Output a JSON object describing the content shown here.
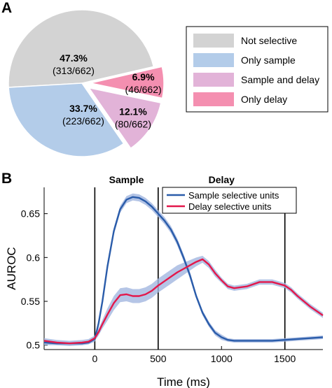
{
  "panels": {
    "a_letter": "A",
    "b_letter": "B"
  },
  "chart_data": [
    {
      "type": "pie",
      "legend_position": "right",
      "slices": [
        {
          "name": "Not selective",
          "percent": 47.3,
          "pct_label": "47.3%",
          "count_label": "(313/662)",
          "color": "#d3d3d3",
          "exploded": false
        },
        {
          "name": "Only sample",
          "percent": 33.7,
          "pct_label": "33.7%",
          "count_label": "(223/662)",
          "color": "#b3cce9",
          "exploded": false
        },
        {
          "name": "Sample and delay",
          "percent": 12.1,
          "pct_label": "12.1%",
          "count_label": "(80/662)",
          "color": "#e2b3d8",
          "exploded": true
        },
        {
          "name": "Only delay",
          "percent": 6.9,
          "pct_label": "6.9%",
          "count_label": "(46/662)",
          "color": "#f48fb0",
          "exploded": true
        }
      ]
    },
    {
      "type": "line",
      "xlabel": "Time (ms)",
      "ylabel": "AUROC",
      "xlim": [
        -400,
        1800
      ],
      "ylim": [
        0.495,
        0.68
      ],
      "xticks": [
        0,
        500,
        1000,
        1500
      ],
      "xtick_labels": [
        "0",
        "500",
        "1000",
        "1500"
      ],
      "yticks": [
        0.5,
        0.55,
        0.6,
        0.65
      ],
      "ytick_labels": [
        "0.5",
        "0.55",
        "0.6",
        "0.65"
      ],
      "grid": false,
      "legend_position": "top-right",
      "vlines": [
        0,
        500,
        1500
      ],
      "epoch_labels": [
        {
          "text": "Sample",
          "x": 250
        },
        {
          "text": "Delay",
          "x": 1000
        }
      ],
      "series": [
        {
          "name": "Sample selective units",
          "color": "#2a5caa",
          "band_color": "#9fb4de",
          "x": [
            -400,
            -300,
            -200,
            -100,
            -50,
            0,
            30,
            60,
            100,
            150,
            200,
            250,
            300,
            350,
            400,
            450,
            500,
            550,
            600,
            650,
            700,
            750,
            800,
            850,
            900,
            950,
            1000,
            1050,
            1100,
            1200,
            1300,
            1400,
            1500,
            1600,
            1700,
            1800
          ],
          "y": [
            0.503,
            0.502,
            0.502,
            0.502,
            0.503,
            0.507,
            0.525,
            0.55,
            0.59,
            0.63,
            0.655,
            0.666,
            0.669,
            0.668,
            0.664,
            0.658,
            0.65,
            0.642,
            0.632,
            0.618,
            0.6,
            0.58,
            0.556,
            0.537,
            0.524,
            0.514,
            0.509,
            0.506,
            0.505,
            0.505,
            0.505,
            0.505,
            0.506,
            0.507,
            0.508,
            0.509
          ],
          "band": [
            0.003,
            0.002,
            0.002,
            0.002,
            0.002,
            0.003,
            0.003,
            0.004,
            0.004,
            0.004,
            0.004,
            0.004,
            0.004,
            0.004,
            0.004,
            0.004,
            0.004,
            0.004,
            0.004,
            0.004,
            0.004,
            0.004,
            0.003,
            0.003,
            0.003,
            0.003,
            0.003,
            0.002,
            0.002,
            0.002,
            0.002,
            0.002,
            0.002,
            0.002,
            0.002,
            0.002
          ]
        },
        {
          "name": "Delay selective units",
          "color": "#e3184b",
          "band_color": "#a3b6e0",
          "x": [
            -400,
            -300,
            -200,
            -100,
            -50,
            0,
            30,
            60,
            100,
            150,
            200,
            250,
            300,
            350,
            400,
            450,
            500,
            550,
            600,
            650,
            700,
            750,
            800,
            850,
            900,
            950,
            1000,
            1050,
            1100,
            1200,
            1300,
            1400,
            1500,
            1550,
            1600,
            1700,
            1800
          ],
          "y": [
            0.505,
            0.503,
            0.502,
            0.503,
            0.504,
            0.508,
            0.515,
            0.524,
            0.535,
            0.548,
            0.557,
            0.558,
            0.556,
            0.556,
            0.558,
            0.562,
            0.568,
            0.573,
            0.578,
            0.583,
            0.587,
            0.591,
            0.595,
            0.598,
            0.592,
            0.582,
            0.574,
            0.567,
            0.565,
            0.567,
            0.572,
            0.572,
            0.568,
            0.563,
            0.556,
            0.544,
            0.534
          ],
          "band": [
            0.003,
            0.003,
            0.003,
            0.003,
            0.003,
            0.003,
            0.004,
            0.005,
            0.007,
            0.008,
            0.008,
            0.008,
            0.008,
            0.008,
            0.008,
            0.008,
            0.008,
            0.008,
            0.008,
            0.008,
            0.007,
            0.006,
            0.005,
            0.004,
            0.004,
            0.004,
            0.003,
            0.003,
            0.003,
            0.003,
            0.003,
            0.003,
            0.003,
            0.003,
            0.003,
            0.003,
            0.003
          ]
        }
      ]
    }
  ]
}
